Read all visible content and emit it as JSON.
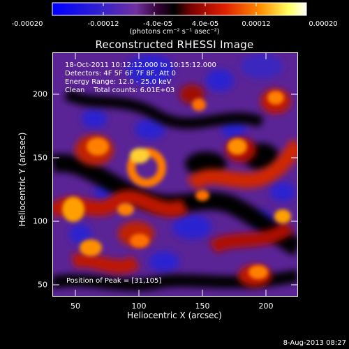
{
  "colorbar": {
    "ticks": [
      "-0.00020",
      "-0.00012",
      "-4.0e-05",
      "4.0e-05",
      "0.00012",
      "0.00020"
    ],
    "units": "(photons cm⁻² s⁻¹ asec⁻²)",
    "colors": [
      "#0000ff",
      "#3a20c8",
      "#6a2aa0",
      "#100010",
      "#7a0000",
      "#d01000",
      "#ff5a00",
      "#ffb000",
      "#ffff80",
      "#ffffff"
    ]
  },
  "title": "Reconstructed RHESSI Image",
  "info": {
    "line1": "18-Oct-2011 10:12:12.000 to 10:15:12.000",
    "line2": "Detectors: 4F 5F 6F 7F 8F, Att 0",
    "line3": "Energy Range: 12.0 - 25.0 keV",
    "line4": "Clean    Total counts: 6.01E+03"
  },
  "peak_text": "Position of Peak = [31,105]",
  "x_axis": {
    "label": "Heliocentric X (arcsec)",
    "ticks": [
      "50",
      "100",
      "150",
      "200"
    ],
    "range": [
      32,
      225
    ]
  },
  "y_axis": {
    "label": "Heliocentric Y (arcsec)",
    "ticks": [
      "50",
      "100",
      "150",
      "200"
    ],
    "range": [
      42,
      235
    ]
  },
  "timestamp": "8-Aug-2013 08:27"
}
